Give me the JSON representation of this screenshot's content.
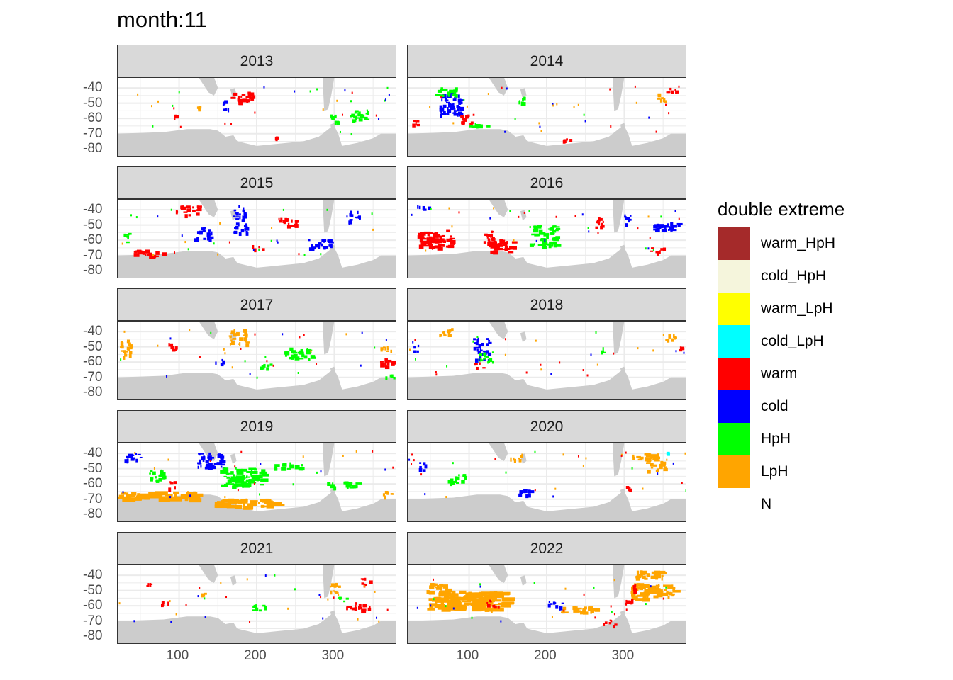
{
  "title": "month:11",
  "chart_data": {
    "type": "heatmap",
    "title": "month:11",
    "xlabel": "",
    "ylabel": "",
    "x_ticks": [
      100,
      200,
      300
    ],
    "y_ticks": [
      -40,
      -50,
      -60,
      -70,
      -80
    ],
    "y_tick_labels": [
      "-40",
      "-50",
      "-60",
      "-70",
      "-80"
    ],
    "xlim": [
      20,
      380
    ],
    "ylim": [
      -85,
      -33
    ],
    "legend_title": "double extreme",
    "legend_position": "right",
    "categories": [
      {
        "name": "warm_HpH",
        "color": "#a52a2a"
      },
      {
        "name": "cold_HpH",
        "color": "#f5f5dc"
      },
      {
        "name": "warm_LpH",
        "color": "#ffff00"
      },
      {
        "name": "cold_LpH",
        "color": "#00ffff"
      },
      {
        "name": "warm",
        "color": "#ff0000"
      },
      {
        "name": "cold",
        "color": "#0000ff"
      },
      {
        "name": "HpH",
        "color": "#00ff00"
      },
      {
        "name": "LpH",
        "color": "#ffa500"
      },
      {
        "name": "N",
        "color": "#ffffff"
      }
    ],
    "land_color": "#cccccc",
    "panels": [
      {
        "year": "2013",
        "regions": [
          {
            "cat": "warm",
            "lon": 180,
            "lat": -46,
            "w": 28,
            "h": 7
          },
          {
            "cat": "cold",
            "lon": 160,
            "lat": -50,
            "w": 8,
            "h": 8
          },
          {
            "cat": "HpH",
            "lon": 330,
            "lat": -58,
            "w": 25,
            "h": 8
          },
          {
            "cat": "HpH",
            "lon": 300,
            "lat": -60,
            "w": 12,
            "h": 6
          },
          {
            "cat": "LpH",
            "lon": 125,
            "lat": -52,
            "w": 6,
            "h": 3
          },
          {
            "cat": "warm",
            "lon": 95,
            "lat": -58,
            "w": 4,
            "h": 3
          },
          {
            "cat": "warm",
            "lon": 225,
            "lat": -72,
            "w": 5,
            "h": 2
          }
        ]
      },
      {
        "year": "2014",
        "regions": [
          {
            "cat": "cold",
            "lon": 75,
            "lat": -50,
            "w": 28,
            "h": 15
          },
          {
            "cat": "HpH",
            "lon": 70,
            "lat": -42,
            "w": 30,
            "h": 5
          },
          {
            "cat": "warm",
            "lon": 95,
            "lat": -60,
            "w": 22,
            "h": 6
          },
          {
            "cat": "warm",
            "lon": 30,
            "lat": -63,
            "w": 12,
            "h": 4
          },
          {
            "cat": "HpH",
            "lon": 112,
            "lat": -64,
            "w": 25,
            "h": 3
          },
          {
            "cat": "HpH",
            "lon": 165,
            "lat": -48,
            "w": 10,
            "h": 6
          },
          {
            "cat": "LpH",
            "lon": 350,
            "lat": -46,
            "w": 18,
            "h": 5
          },
          {
            "cat": "warm",
            "lon": 360,
            "lat": -41,
            "w": 14,
            "h": 4
          },
          {
            "cat": "warm",
            "lon": 225,
            "lat": -74,
            "w": 12,
            "h": 2
          }
        ]
      },
      {
        "year": "2015",
        "regions": [
          {
            "cat": "warm",
            "lon": 110,
            "lat": -40,
            "w": 30,
            "h": 6
          },
          {
            "cat": "cold",
            "lon": 178,
            "lat": -46,
            "w": 18,
            "h": 18
          },
          {
            "cat": "warm",
            "lon": 240,
            "lat": -47,
            "w": 25,
            "h": 6
          },
          {
            "cat": "cold",
            "lon": 280,
            "lat": -62,
            "w": 32,
            "h": 6
          },
          {
            "cat": "cold",
            "lon": 130,
            "lat": -55,
            "w": 22,
            "h": 8
          },
          {
            "cat": "HpH",
            "lon": 30,
            "lat": -58,
            "w": 10,
            "h": 6
          },
          {
            "cat": "warm",
            "lon": 60,
            "lat": -68,
            "w": 40,
            "h": 4
          },
          {
            "cat": "warm",
            "lon": 200,
            "lat": -64,
            "w": 15,
            "h": 3
          },
          {
            "cat": "cold",
            "lon": 325,
            "lat": -44,
            "w": 15,
            "h": 8
          }
        ]
      },
      {
        "year": "2016",
        "regions": [
          {
            "cat": "warm",
            "lon": 55,
            "lat": -59,
            "w": 45,
            "h": 12
          },
          {
            "cat": "warm",
            "lon": 140,
            "lat": -63,
            "w": 35,
            "h": 8
          },
          {
            "cat": "warm",
            "lon": 125,
            "lat": -57,
            "w": 15,
            "h": 8
          },
          {
            "cat": "HpH",
            "lon": 195,
            "lat": -57,
            "w": 35,
            "h": 14
          },
          {
            "cat": "warm",
            "lon": 270,
            "lat": -48,
            "w": 15,
            "h": 6
          },
          {
            "cat": "cold",
            "lon": 352,
            "lat": -50,
            "w": 35,
            "h": 6
          },
          {
            "cat": "cold",
            "lon": 305,
            "lat": -46,
            "w": 12,
            "h": 6
          },
          {
            "cat": "warm",
            "lon": 340,
            "lat": -66,
            "w": 20,
            "h": 3
          },
          {
            "cat": "cold",
            "lon": 40,
            "lat": -38,
            "w": 15,
            "h": 3
          }
        ]
      },
      {
        "year": "2017",
        "regions": [
          {
            "cat": "LpH",
            "lon": 30,
            "lat": -50,
            "w": 15,
            "h": 12
          },
          {
            "cat": "HpH",
            "lon": 253,
            "lat": -54,
            "w": 35,
            "h": 8
          },
          {
            "cat": "warm",
            "lon": 370,
            "lat": -60,
            "w": 25,
            "h": 5
          },
          {
            "cat": "LpH",
            "lon": 175,
            "lat": -43,
            "w": 22,
            "h": 10
          },
          {
            "cat": "cold",
            "lon": 150,
            "lat": -60,
            "w": 12,
            "h": 4
          },
          {
            "cat": "HpH",
            "lon": 210,
            "lat": -62,
            "w": 20,
            "h": 4
          },
          {
            "cat": "warm",
            "lon": 90,
            "lat": -50,
            "w": 10,
            "h": 6
          },
          {
            "cat": "LpH",
            "lon": 365,
            "lat": -50,
            "w": 15,
            "h": 5
          },
          {
            "cat": "HpH",
            "lon": 370,
            "lat": -69,
            "w": 12,
            "h": 3
          }
        ]
      },
      {
        "year": "2018",
        "regions": [
          {
            "cat": "cold",
            "lon": 115,
            "lat": -51,
            "w": 20,
            "h": 14
          },
          {
            "cat": "LpH",
            "lon": 70,
            "lat": -40,
            "w": 20,
            "h": 5
          },
          {
            "cat": "HpH",
            "lon": 120,
            "lat": -56,
            "w": 20,
            "h": 6
          },
          {
            "cat": "warm",
            "lon": 110,
            "lat": -62,
            "w": 15,
            "h": 3
          },
          {
            "cat": "LpH",
            "lon": 360,
            "lat": -44,
            "w": 15,
            "h": 5
          },
          {
            "cat": "warm",
            "lon": 370,
            "lat": -50,
            "w": 8,
            "h": 5
          },
          {
            "cat": "HpH",
            "lon": 270,
            "lat": -52,
            "w": 8,
            "h": 4
          },
          {
            "cat": "cold",
            "lon": 30,
            "lat": -50,
            "w": 8,
            "h": 5
          }
        ]
      },
      {
        "year": "2019",
        "regions": [
          {
            "cat": "cold",
            "lon": 140,
            "lat": -44,
            "w": 35,
            "h": 10
          },
          {
            "cat": "HpH",
            "lon": 180,
            "lat": -55,
            "w": 55,
            "h": 12
          },
          {
            "cat": "HpH",
            "lon": 240,
            "lat": -48,
            "w": 35,
            "h": 4
          },
          {
            "cat": "HpH",
            "lon": 70,
            "lat": -54,
            "w": 22,
            "h": 7
          },
          {
            "cat": "warm",
            "lon": 90,
            "lat": -60,
            "w": 8,
            "h": 6
          },
          {
            "cat": "LpH",
            "lon": 70,
            "lat": -67,
            "w": 100,
            "h": 5
          },
          {
            "cat": "LpH",
            "lon": 185,
            "lat": -72,
            "w": 80,
            "h": 5
          },
          {
            "cat": "LpH",
            "lon": 370,
            "lat": -66,
            "w": 15,
            "h": 5
          },
          {
            "cat": "HpH",
            "lon": 310,
            "lat": -60,
            "w": 40,
            "h": 4
          },
          {
            "cat": "cold",
            "lon": 40,
            "lat": -42,
            "w": 25,
            "h": 4
          }
        ]
      },
      {
        "year": "2020",
        "regions": [
          {
            "cat": "LpH",
            "lon": 330,
            "lat": -42,
            "w": 40,
            "h": 5
          },
          {
            "cat": "cold",
            "lon": 170,
            "lat": -65,
            "w": 20,
            "h": 4
          },
          {
            "cat": "HpH",
            "lon": 85,
            "lat": -56,
            "w": 25,
            "h": 6
          },
          {
            "cat": "LpH",
            "lon": 340,
            "lat": -48,
            "w": 25,
            "h": 6
          },
          {
            "cat": "cold_LpH",
            "lon": 355,
            "lat": -40,
            "w": 4,
            "h": 3
          },
          {
            "cat": "warm",
            "lon": 305,
            "lat": -63,
            "w": 8,
            "h": 4
          },
          {
            "cat": "LpH",
            "lon": 160,
            "lat": -42,
            "w": 15,
            "h": 4
          },
          {
            "cat": "cold",
            "lon": 40,
            "lat": -48,
            "w": 10,
            "h": 5
          }
        ]
      },
      {
        "year": "2021",
        "regions": [
          {
            "cat": "HpH",
            "lon": 200,
            "lat": -61,
            "w": 20,
            "h": 4
          },
          {
            "cat": "warm",
            "lon": 330,
            "lat": -60,
            "w": 30,
            "h": 5
          },
          {
            "cat": "LpH",
            "lon": 300,
            "lat": -48,
            "w": 15,
            "h": 6
          },
          {
            "cat": "warm",
            "lon": 340,
            "lat": -44,
            "w": 15,
            "h": 5
          },
          {
            "cat": "HpH",
            "lon": 310,
            "lat": -56,
            "w": 10,
            "h": 4
          },
          {
            "cat": "warm",
            "lon": 80,
            "lat": -58,
            "w": 10,
            "h": 3
          },
          {
            "cat": "LpH",
            "lon": 130,
            "lat": -52,
            "w": 6,
            "h": 3
          },
          {
            "cat": "warm",
            "lon": 60,
            "lat": -45,
            "w": 6,
            "h": 3
          }
        ]
      },
      {
        "year": "2022",
        "regions": [
          {
            "cat": "LpH",
            "lon": 95,
            "lat": -56,
            "w": 100,
            "h": 12
          },
          {
            "cat": "LpH",
            "lon": 60,
            "lat": -48,
            "w": 30,
            "h": 6
          },
          {
            "cat": "LpH",
            "lon": 240,
            "lat": -62,
            "w": 50,
            "h": 4
          },
          {
            "cat": "LpH",
            "lon": 335,
            "lat": -50,
            "w": 55,
            "h": 10
          },
          {
            "cat": "LpH",
            "lon": 330,
            "lat": -39,
            "w": 40,
            "h": 6
          },
          {
            "cat": "warm",
            "lon": 315,
            "lat": -48,
            "w": 10,
            "h": 5
          },
          {
            "cat": "warm",
            "lon": 305,
            "lat": -58,
            "w": 10,
            "h": 5
          },
          {
            "cat": "warm",
            "lon": 280,
            "lat": -71,
            "w": 15,
            "h": 4
          },
          {
            "cat": "cold",
            "lon": 210,
            "lat": -59,
            "w": 20,
            "h": 4
          },
          {
            "cat": "warm",
            "lon": 130,
            "lat": -58,
            "w": 15,
            "h": 4
          }
        ]
      }
    ]
  }
}
